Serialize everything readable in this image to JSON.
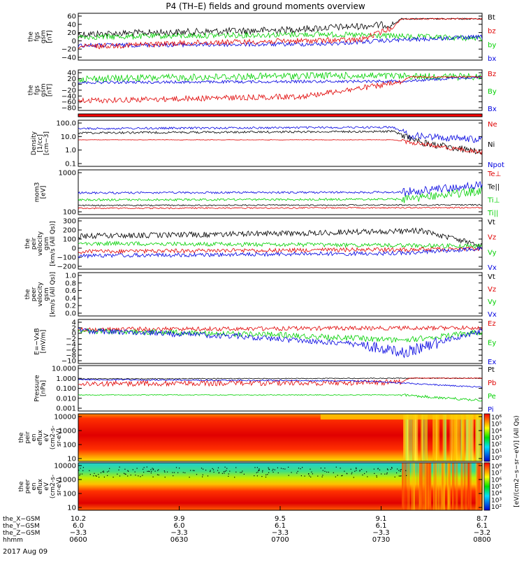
{
  "title": "P4 (TH–E) fields and ground moments overview",
  "date_label": "2017 Aug 09",
  "colors": {
    "black": "#000000",
    "red": "#e00000",
    "green": "#00d000",
    "blue": "#0000e0"
  },
  "panels": [
    {
      "id": "fgs-gsm",
      "ylabel": [
        "the",
        "fgs",
        "gsm",
        "[nT]"
      ],
      "ticks": [
        "60",
        "40",
        "20",
        "0",
        "−20",
        "−40"
      ],
      "legend": [
        {
          "t": "Bt",
          "c": "black"
        },
        {
          "t": "bz",
          "c": "red"
        },
        {
          "t": "by",
          "c": "green"
        },
        {
          "t": "bx",
          "c": "blue"
        }
      ]
    },
    {
      "id": "fgs-dsl",
      "ylabel": [
        "the",
        "fgs",
        "gsm",
        "[nT]"
      ],
      "ticks": [
        "40",
        "20",
        "0",
        "−20",
        "−40",
        "−60",
        "−80"
      ],
      "legend": [
        {
          "t": "Bz",
          "c": "red"
        },
        {
          "t": "By",
          "c": "green"
        },
        {
          "t": "Bx",
          "c": "blue"
        }
      ]
    },
    {
      "id": "mode-bar",
      "ylabel": [],
      "ticks": [],
      "legend": []
    },
    {
      "id": "density",
      "ylabel": [
        "Density",
        "[1/cc]",
        "[cm−3]"
      ],
      "ticks": [
        "100.0",
        "10.0",
        "1.0",
        "0.1"
      ],
      "legend": [
        {
          "t": "Ne",
          "c": "red"
        },
        {
          "t": "Ni",
          "c": "black"
        },
        {
          "t": "Npot",
          "c": "blue"
        }
      ]
    },
    {
      "id": "temperature",
      "ylabel": [
        "mom3",
        "[eV]"
      ],
      "ticks": [
        "1000",
        "100"
      ],
      "legend": [
        {
          "t": "Te⊥",
          "c": "red"
        },
        {
          "t": "Te||",
          "c": "black"
        },
        {
          "t": "Ti⊥",
          "c": "green"
        },
        {
          "t": "Ti||",
          "c": "green"
        }
      ]
    },
    {
      "id": "peir-velocity",
      "ylabel": [
        "the",
        "peir",
        "velocity",
        "gsm",
        "[km/s (All Qs)]"
      ],
      "ticks": [
        "300",
        "200",
        "100",
        "0",
        "−100",
        "−200"
      ],
      "legend": [
        {
          "t": "Vt",
          "c": "black"
        },
        {
          "t": "Vz",
          "c": "red"
        },
        {
          "t": "Vy",
          "c": "green"
        },
        {
          "t": "Vx",
          "c": "blue"
        }
      ]
    },
    {
      "id": "peer-velocity",
      "ylabel": [
        "the",
        "peer",
        "velocity",
        "gsm",
        "[km/s (All Qs)]"
      ],
      "ticks": [
        "1.0",
        "0.8",
        "0.6",
        "0.4",
        "0.2",
        "0.0"
      ],
      "legend": [
        {
          "t": "Vt",
          "c": "black"
        },
        {
          "t": "Vz",
          "c": "red"
        },
        {
          "t": "Vy",
          "c": "green"
        },
        {
          "t": "Vx",
          "c": "blue"
        }
      ]
    },
    {
      "id": "efield",
      "ylabel": [
        "E=−VxB",
        "[mV/m]"
      ],
      "ticks": [
        "4",
        "2",
        "0",
        "−2",
        "−4",
        "−6",
        "−8",
        "−10"
      ],
      "legend": [
        {
          "t": "Ez",
          "c": "red"
        },
        {
          "t": "Ey",
          "c": "green"
        },
        {
          "t": "Ex",
          "c": "blue"
        }
      ]
    },
    {
      "id": "pressure",
      "ylabel": [
        "Pressure",
        "[nPa]"
      ],
      "ticks": [
        "10.000",
        "1.000",
        "0.100",
        "0.010",
        "0.001"
      ],
      "legend": [
        {
          "t": "Pt",
          "c": "black"
        },
        {
          "t": "Pb",
          "c": "red"
        },
        {
          "t": "Pe",
          "c": "green"
        },
        {
          "t": "Pi",
          "c": "blue"
        }
      ]
    },
    {
      "id": "peir-spec",
      "ylabel": [
        "the",
        "peir",
        "en",
        "eflux",
        "eV",
        "(cm2-s-",
        "sr-eV)"
      ],
      "ticks": [
        "10000",
        "1000",
        "100",
        "10"
      ],
      "legend": []
    },
    {
      "id": "peer-spec",
      "ylabel": [
        "the",
        "peer",
        "en",
        "eflux",
        "eV",
        "(cm2-s-",
        "sr-eV)"
      ],
      "ticks": [
        "10000",
        "1000",
        "100",
        "10"
      ],
      "legend": []
    }
  ],
  "colorbar_ion": [
    "10⁶",
    "10⁵",
    "10⁴",
    "10³",
    "10²",
    "10¹",
    "10⁰"
  ],
  "colorbar_el": [
    "10⁸",
    "10⁷",
    "10⁶",
    "10⁵",
    "10⁴",
    "10³",
    "10²"
  ],
  "colorbar_units": "[eV/(cm2−s−sr−eV)] (All Qs)",
  "xaxis": {
    "row_labels": [
      "the_X−GSM",
      "the_Y−GSM",
      "the_Z−GSM",
      "hhmm"
    ],
    "columns": [
      [
        "10.2",
        "6.0",
        "−3.3",
        "0600"
      ],
      [
        "9.9",
        "6.0",
        "−3.3",
        "0630"
      ],
      [
        "9.5",
        "6.1",
        "−3.3",
        "0700"
      ],
      [
        "9.1",
        "6.1",
        "−3.3",
        "0730"
      ],
      [
        "8.7",
        "6.1",
        "−3.2",
        "0800"
      ]
    ]
  },
  "chart_data": {
    "type": "line",
    "title": "P4 (TH–E) fields and ground moments overview",
    "x": [
      "0600",
      "0630",
      "0700",
      "0730",
      "0800"
    ],
    "series": [
      {
        "name": "Bt",
        "values": [
          18,
          22,
          25,
          35,
          48
        ]
      },
      {
        "name": "bz",
        "values": [
          -5,
          0,
          10,
          20,
          48
        ]
      },
      {
        "name": "by",
        "values": [
          8,
          12,
          14,
          10,
          5
        ]
      },
      {
        "name": "bx",
        "values": [
          -8,
          -5,
          -4,
          5,
          10
        ]
      },
      {
        "name": "Bz",
        "values": [
          -60,
          -50,
          -45,
          -20,
          0
        ]
      },
      {
        "name": "By",
        "values": [
          15,
          18,
          20,
          10,
          0
        ]
      },
      {
        "name": "Bx",
        "values": [
          -10,
          -12,
          -12,
          -5,
          0
        ]
      },
      {
        "name": "Ne",
        "values": [
          5,
          5,
          5,
          5,
          1.5
        ]
      },
      {
        "name": "Ni",
        "values": [
          25,
          22,
          20,
          20,
          1.5
        ]
      },
      {
        "name": "Npot",
        "values": [
          40,
          40,
          40,
          40,
          5
        ]
      },
      {
        "name": "Vt",
        "values": [
          100,
          130,
          150,
          160,
          50
        ]
      },
      {
        "name": "Ex",
        "values": [
          0,
          -2,
          -4,
          -6,
          0
        ]
      },
      {
        "name": "Pt",
        "values": [
          1.0,
          1.0,
          1.0,
          1.0,
          1.0
        ]
      },
      {
        "name": "Pi",
        "values": [
          0.8,
          0.8,
          0.6,
          0.4,
          0.15
        ]
      },
      {
        "name": "Pe",
        "values": [
          0.05,
          0.05,
          0.05,
          0.05,
          0.02
        ]
      }
    ]
  }
}
